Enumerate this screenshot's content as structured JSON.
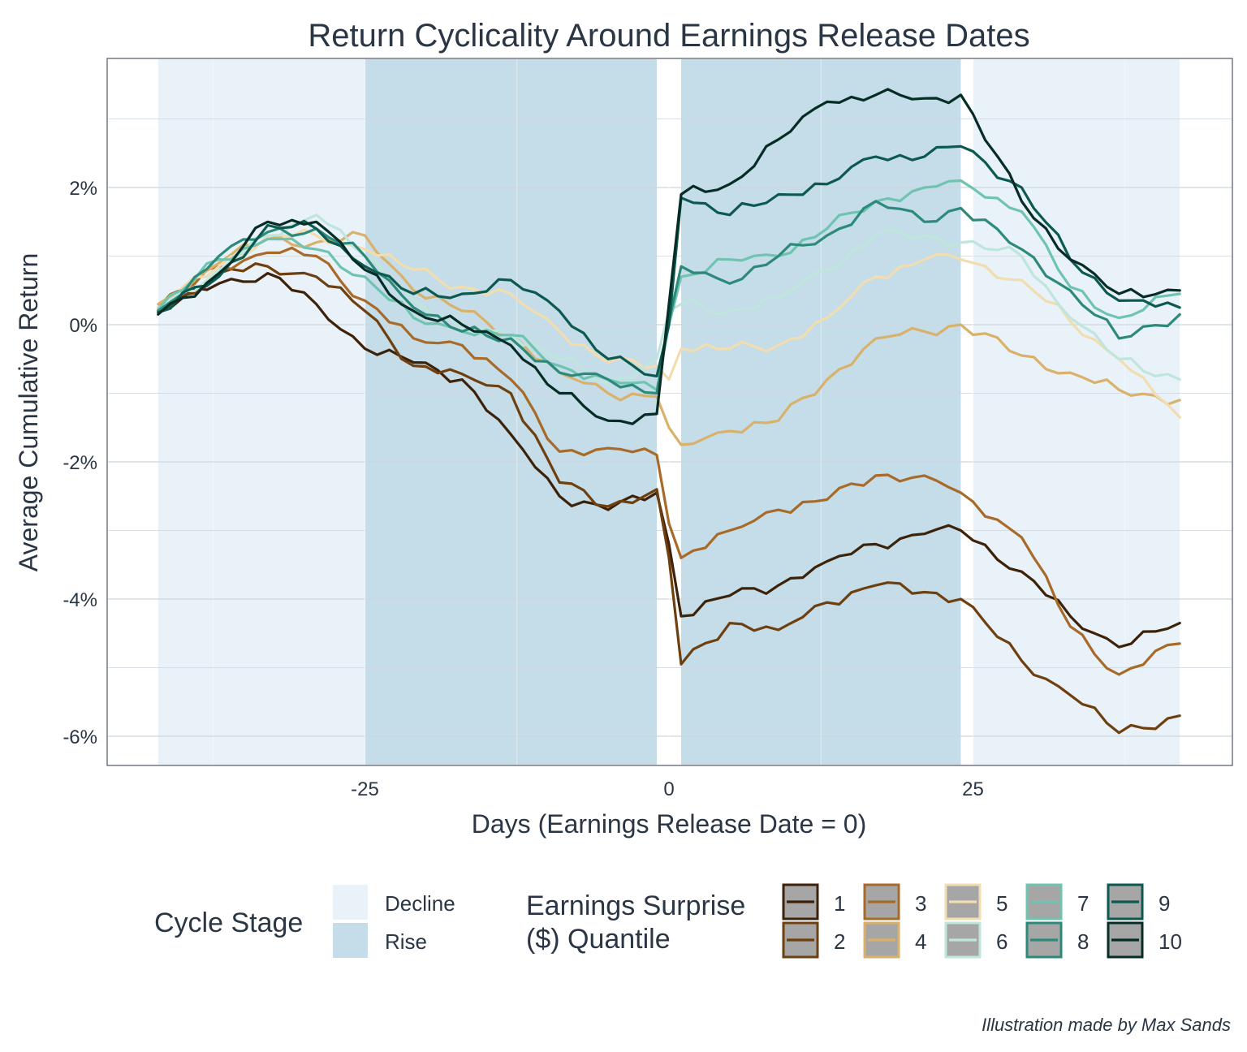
{
  "chart_data": {
    "type": "line",
    "title": "Return Cyclicality Around Earnings Release Dates",
    "xlabel": "Days (Earnings Release Date = 0)",
    "ylabel": "Average Cumulative Return",
    "caption": "Illustration made by Max Sands",
    "x_ticks": [
      -25,
      0,
      25
    ],
    "x_tick_labels": [
      "-25",
      "0",
      "25"
    ],
    "y_ticks": [
      2,
      0,
      -2,
      -4,
      -6
    ],
    "y_tick_labels": [
      "2%",
      "0%",
      "-2%",
      "-4%",
      "-6%"
    ],
    "xlim": [
      -46,
      46
    ],
    "ylim": [
      -6.4,
      3.9
    ],
    "grid": true,
    "cycle_stages": [
      {
        "stage": "Decline",
        "x_from": -42,
        "x_to": -25,
        "color": "#e9f1f9"
      },
      {
        "stage": "Rise",
        "x_from": -25,
        "x_to": -1,
        "color": "#c5dde9"
      },
      {
        "stage": "Rise",
        "x_from": 1,
        "x_to": 24,
        "color": "#c5dde9"
      },
      {
        "stage": "Decline",
        "x_from": 25,
        "x_to": 42,
        "color": "#e9f1f9"
      }
    ],
    "legend": {
      "placement": "bottom",
      "cycle_title": "Cycle Stage",
      "cycle_items": [
        {
          "label": "Decline",
          "color": "#e9f1f9"
        },
        {
          "label": "Rise",
          "color": "#c5dde9"
        }
      ],
      "quantile_title_line1": "Earnings Surprise",
      "quantile_title_line2": "($) Quantile"
    },
    "anchors": [
      -42,
      -37,
      -33,
      -29,
      -25,
      -21,
      -17,
      -13,
      -9,
      -5,
      -1,
      0,
      1,
      5,
      9,
      13,
      17,
      21,
      24,
      29,
      33,
      37,
      42
    ],
    "series": [
      {
        "name": "1",
        "color": "#3d220a",
        "values": [
          0.2,
          0.6,
          0.75,
          0.3,
          -0.35,
          -0.55,
          -0.8,
          -1.6,
          -2.5,
          -2.7,
          -2.45,
          -3.2,
          -4.25,
          -3.95,
          -3.8,
          -3.45,
          -3.2,
          -3.05,
          -3.0,
          -3.6,
          -4.25,
          -4.7,
          -4.35
        ]
      },
      {
        "name": "2",
        "color": "#6e3f0f",
        "values": [
          0.18,
          0.75,
          0.85,
          0.7,
          0.2,
          -0.6,
          -0.72,
          -1.0,
          -2.3,
          -2.65,
          -2.4,
          -3.4,
          -4.95,
          -4.35,
          -4.45,
          -4.05,
          -3.8,
          -3.9,
          -4.0,
          -4.9,
          -5.4,
          -5.95,
          -5.7
        ]
      },
      {
        "name": "3",
        "color": "#a86a28",
        "values": [
          0.25,
          0.85,
          1.05,
          1.0,
          0.35,
          -0.2,
          -0.3,
          -0.8,
          -1.85,
          -1.8,
          -1.9,
          -2.9,
          -3.4,
          -3.0,
          -2.7,
          -2.55,
          -2.2,
          -2.2,
          -2.45,
          -3.1,
          -4.4,
          -5.1,
          -4.65
        ]
      },
      {
        "name": "4",
        "color": "#d9b16a",
        "values": [
          0.3,
          0.9,
          1.25,
          1.2,
          1.3,
          0.5,
          0.2,
          -0.15,
          -0.7,
          -1.0,
          -1.05,
          -1.5,
          -1.75,
          -1.55,
          -1.4,
          -0.8,
          -0.2,
          -0.1,
          0.0,
          -0.45,
          -0.7,
          -0.95,
          -1.1
        ]
      },
      {
        "name": "5",
        "color": "#f1ddb0",
        "values": [
          0.25,
          0.85,
          1.3,
          1.3,
          1.1,
          0.8,
          0.55,
          0.45,
          -0.1,
          -0.55,
          -0.6,
          -0.8,
          -0.35,
          -0.35,
          -0.3,
          0.1,
          0.7,
          0.95,
          0.95,
          0.65,
          0.05,
          -0.5,
          -1.35
        ]
      },
      {
        "name": "6",
        "color": "#bfe6dc",
        "values": [
          0.25,
          0.8,
          1.3,
          1.6,
          1.0,
          0.35,
          -0.05,
          -0.15,
          -0.5,
          -0.85,
          -0.5,
          0.2,
          0.3,
          0.2,
          0.4,
          0.8,
          1.3,
          1.3,
          1.2,
          1.0,
          0.1,
          -0.5,
          -0.8
        ]
      },
      {
        "name": "7",
        "color": "#6fc4b1",
        "values": [
          0.22,
          0.95,
          1.25,
          1.1,
          0.7,
          0.1,
          -0.1,
          -0.15,
          -0.6,
          -0.8,
          -0.95,
          0.0,
          0.7,
          0.95,
          1.0,
          1.4,
          1.8,
          2.0,
          2.1,
          1.65,
          0.55,
          0.1,
          0.45
        ]
      },
      {
        "name": "8",
        "color": "#2d8a7b",
        "values": [
          0.2,
          1.0,
          1.35,
          1.4,
          1.0,
          0.25,
          -0.1,
          -0.2,
          -0.7,
          -0.8,
          -1.0,
          0.05,
          0.85,
          0.6,
          1.0,
          1.3,
          1.8,
          1.5,
          1.7,
          1.1,
          0.5,
          -0.2,
          0.15
        ]
      },
      {
        "name": "9",
        "color": "#0c5950",
        "values": [
          0.18,
          0.7,
          1.45,
          1.4,
          0.85,
          0.45,
          0.45,
          0.65,
          0.2,
          -0.5,
          -0.75,
          0.0,
          1.85,
          1.6,
          1.9,
          2.05,
          2.45,
          2.45,
          2.6,
          2.0,
          0.95,
          0.35,
          0.25
        ]
      },
      {
        "name": "10",
        "color": "#062d25",
        "values": [
          0.15,
          0.75,
          1.5,
          1.5,
          0.8,
          0.2,
          0.0,
          -0.3,
          -1.0,
          -1.4,
          -1.3,
          0.3,
          1.9,
          2.05,
          2.7,
          3.25,
          3.35,
          3.3,
          3.35,
          1.8,
          0.95,
          0.45,
          0.5
        ]
      }
    ]
  }
}
